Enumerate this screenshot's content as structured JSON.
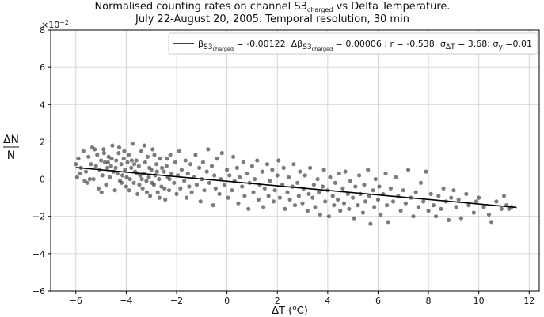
{
  "chart_data": {
    "type": "scatter",
    "title_line1_main": "Normalised counting rates on channel S3",
    "title_line1_sub": "charged",
    "title_line1_tail": " vs Delta Temperature.",
    "title_line2": "July 22-August 20, 2005. Temporal resolution, 30 min",
    "x_axis": {
      "label_main": "ΔT (",
      "label_sup": "o",
      "label_tail": "C)",
      "xlim": [
        -7,
        12.4
      ],
      "ticks": [
        -6,
        -4,
        -2,
        0,
        2,
        4,
        6,
        8,
        10,
        12
      ],
      "tick_labels": [
        "−6",
        "−4",
        "−2",
        "0",
        "2",
        "4",
        "6",
        "8",
        "10",
        "12"
      ],
      "grid": true
    },
    "y_axis": {
      "label_num": "ΔN",
      "label_den": "N",
      "ylim": [
        -6,
        8
      ],
      "ticks": [
        -6,
        -4,
        -2,
        0,
        2,
        4,
        6,
        8
      ],
      "tick_labels": [
        "−6",
        "−4",
        "−2",
        "0",
        "2",
        "4",
        "6",
        "8"
      ],
      "scale_label": "×10",
      "scale_exponent": "−2",
      "grid": true
    },
    "fit_line": {
      "x": [
        -6,
        11.5
      ],
      "y": [
        0.62,
        -1.52
      ],
      "color": "#000000"
    },
    "legend": {
      "placement": "top-right",
      "parts": [
        {
          "text": "β",
          "style": "normal"
        },
        {
          "text": "S3",
          "style": "sub"
        },
        {
          "text": "charged",
          "style": "subsub"
        },
        {
          "text": " = -0.00122, Δβ",
          "style": "normal"
        },
        {
          "text": "S3",
          "style": "sub"
        },
        {
          "text": "charged",
          "style": "subsub"
        },
        {
          "text": " = 0.00006 ; r = -0.538; σ",
          "style": "normal"
        },
        {
          "text": "ΔT",
          "style": "sub"
        },
        {
          "text": " = 3.68; σ",
          "style": "normal"
        },
        {
          "text": "y",
          "style": "sub"
        },
        {
          "text": " =0.01",
          "style": "normal"
        }
      ]
    },
    "scatter_series": {
      "color": "#444444",
      "opacity": 0.7,
      "points": [
        [
          -6.0,
          0.8
        ],
        [
          -5.9,
          1.1
        ],
        [
          -5.85,
          0.3
        ],
        [
          -5.8,
          0.6
        ],
        [
          -5.7,
          1.5
        ],
        [
          -5.6,
          0.4
        ],
        [
          -5.55,
          -0.2
        ],
        [
          -5.5,
          1.2
        ],
        [
          -5.4,
          0.8
        ],
        [
          -5.35,
          1.7
        ],
        [
          -5.3,
          0.0
        ],
        [
          -5.2,
          0.7
        ],
        [
          -5.15,
          1.3
        ],
        [
          -5.1,
          -0.5
        ],
        [
          -5.05,
          0.5
        ],
        [
          -5.0,
          1.0
        ],
        [
          -4.95,
          0.2
        ],
        [
          -4.9,
          1.6
        ],
        [
          -4.85,
          0.9
        ],
        [
          -4.8,
          -0.3
        ],
        [
          -4.75,
          0.6
        ],
        [
          -4.7,
          1.2
        ],
        [
          -4.65,
          0.1
        ],
        [
          -4.6,
          0.7
        ],
        [
          -4.55,
          1.8
        ],
        [
          -4.5,
          0.4
        ],
        [
          -4.45,
          -0.6
        ],
        [
          -4.4,
          1.0
        ],
        [
          -4.35,
          0.3
        ],
        [
          -4.3,
          1.4
        ],
        [
          -4.25,
          -0.1
        ],
        [
          -4.2,
          0.8
        ],
        [
          -4.15,
          0.2
        ],
        [
          -4.1,
          1.1
        ],
        [
          -4.05,
          0.5
        ],
        [
          -4.0,
          -0.4
        ],
        [
          -3.95,
          0.9
        ],
        [
          -3.9,
          1.3
        ],
        [
          -3.85,
          0.0
        ],
        [
          -3.8,
          0.6
        ],
        [
          -3.75,
          1.9
        ],
        [
          -3.7,
          -0.2
        ],
        [
          -3.65,
          0.4
        ],
        [
          -3.6,
          1.0
        ],
        [
          -3.55,
          -0.8
        ],
        [
          -3.5,
          0.7
        ],
        [
          -3.45,
          0.2
        ],
        [
          -3.4,
          1.5
        ],
        [
          -3.35,
          -0.5
        ],
        [
          -3.3,
          0.3
        ],
        [
          -3.25,
          0.9
        ],
        [
          -3.2,
          -0.1
        ],
        [
          -3.15,
          1.2
        ],
        [
          -3.1,
          0.1
        ],
        [
          -3.05,
          -0.9
        ],
        [
          -3.0,
          0.5
        ],
        [
          -2.95,
          1.6
        ],
        [
          -2.9,
          -0.3
        ],
        [
          -2.85,
          0.2
        ],
        [
          -2.8,
          0.8
        ],
        [
          -2.75,
          -0.7
        ],
        [
          -2.7,
          0.0
        ],
        [
          -2.65,
          1.1
        ],
        [
          -2.6,
          -0.4
        ],
        [
          -2.5,
          0.4
        ],
        [
          -2.45,
          -1.1
        ],
        [
          -2.4,
          0.7
        ],
        [
          -2.35,
          0.1
        ],
        [
          -2.3,
          -0.6
        ],
        [
          -2.25,
          1.3
        ],
        [
          -2.2,
          0.3
        ],
        [
          -2.1,
          -0.2
        ],
        [
          -2.05,
          0.9
        ],
        [
          -2.0,
          -0.8
        ],
        [
          -1.95,
          0.2
        ],
        [
          -1.9,
          1.5
        ],
        [
          -1.85,
          -0.5
        ],
        [
          -1.8,
          0.5
        ],
        [
          -1.7,
          -0.1
        ],
        [
          -1.65,
          1.0
        ],
        [
          -1.6,
          -1.0
        ],
        [
          -1.55,
          0.3
        ],
        [
          -1.5,
          -0.4
        ],
        [
          -1.45,
          0.8
        ],
        [
          -1.4,
          -0.7
        ],
        [
          -1.3,
          0.1
        ],
        [
          -1.25,
          1.3
        ],
        [
          -1.2,
          -0.3
        ],
        [
          -1.1,
          0.6
        ],
        [
          -1.05,
          -1.2
        ],
        [
          -1.0,
          0.0
        ],
        [
          -0.95,
          0.9
        ],
        [
          -0.9,
          -0.6
        ],
        [
          -0.8,
          0.4
        ],
        [
          -0.75,
          1.6
        ],
        [
          -0.7,
          -0.2
        ],
        [
          -0.6,
          0.7
        ],
        [
          -0.55,
          -1.4
        ],
        [
          -0.5,
          0.2
        ],
        [
          -0.45,
          -0.5
        ],
        [
          -0.4,
          1.1
        ],
        [
          -0.3,
          -0.8
        ],
        [
          -0.25,
          0.0
        ],
        [
          -0.2,
          1.4
        ],
        [
          -0.1,
          -0.3
        ],
        [
          0.0,
          0.5
        ],
        [
          0.05,
          -1.0
        ],
        [
          0.1,
          0.2
        ],
        [
          0.2,
          -0.6
        ],
        [
          0.25,
          1.2
        ],
        [
          0.3,
          -0.1
        ],
        [
          0.4,
          0.6
        ],
        [
          0.45,
          -1.3
        ],
        [
          0.5,
          0.1
        ],
        [
          0.6,
          -0.4
        ],
        [
          0.65,
          0.9
        ],
        [
          0.7,
          -0.9
        ],
        [
          0.8,
          0.3
        ],
        [
          0.85,
          -1.6
        ],
        [
          0.9,
          -0.2
        ],
        [
          1.0,
          0.7
        ],
        [
          1.05,
          -0.7
        ],
        [
          1.1,
          0.0
        ],
        [
          1.2,
          1.0
        ],
        [
          1.25,
          -1.1
        ],
        [
          1.3,
          -0.3
        ],
        [
          1.4,
          0.4
        ],
        [
          1.45,
          -1.5
        ],
        [
          1.5,
          -0.5
        ],
        [
          1.6,
          0.8
        ],
        [
          1.65,
          -0.9
        ],
        [
          1.7,
          -0.1
        ],
        [
          1.8,
          0.5
        ],
        [
          1.85,
          -1.2
        ],
        [
          1.9,
          -0.6
        ],
        [
          2.0,
          0.2
        ],
        [
          2.05,
          1.0
        ],
        [
          2.1,
          -1.0
        ],
        [
          2.2,
          -0.3
        ],
        [
          2.25,
          0.6
        ],
        [
          2.3,
          -1.6
        ],
        [
          2.4,
          -0.7
        ],
        [
          2.45,
          0.1
        ],
        [
          2.5,
          -1.1
        ],
        [
          2.6,
          -0.4
        ],
        [
          2.65,
          0.8
        ],
        [
          2.7,
          -1.4
        ],
        [
          2.8,
          -0.2
        ],
        [
          2.85,
          -0.9
        ],
        [
          2.9,
          0.4
        ],
        [
          3.0,
          -1.3
        ],
        [
          3.05,
          -0.5
        ],
        [
          3.1,
          0.2
        ],
        [
          3.2,
          -1.7
        ],
        [
          3.25,
          -0.8
        ],
        [
          3.3,
          0.6
        ],
        [
          3.4,
          -1.0
        ],
        [
          3.45,
          -0.3
        ],
        [
          3.5,
          -1.5
        ],
        [
          3.6,
          0.0
        ],
        [
          3.65,
          -0.7
        ],
        [
          3.7,
          -1.9
        ],
        [
          3.8,
          -0.4
        ],
        [
          3.85,
          0.5
        ],
        [
          3.9,
          -1.2
        ],
        [
          4.0,
          -0.6
        ],
        [
          4.05,
          -2.0
        ],
        [
          4.1,
          0.1
        ],
        [
          4.2,
          -0.9
        ],
        [
          4.25,
          -1.4
        ],
        [
          4.3,
          -0.2
        ],
        [
          4.4,
          -1.1
        ],
        [
          4.45,
          0.3
        ],
        [
          4.5,
          -1.7
        ],
        [
          4.6,
          -0.5
        ],
        [
          4.65,
          -1.3
        ],
        [
          4.7,
          0.4
        ],
        [
          4.8,
          -0.8
        ],
        [
          4.85,
          -1.6
        ],
        [
          4.9,
          -0.1
        ],
        [
          5.0,
          -1.0
        ],
        [
          5.05,
          -2.1
        ],
        [
          5.1,
          -0.4
        ],
        [
          5.2,
          -1.4
        ],
        [
          5.25,
          0.2
        ],
        [
          5.3,
          -0.8
        ],
        [
          5.4,
          -1.8
        ],
        [
          5.45,
          -0.3
        ],
        [
          5.5,
          -1.2
        ],
        [
          5.6,
          0.5
        ],
        [
          5.65,
          -0.9
        ],
        [
          5.7,
          -2.4
        ],
        [
          5.8,
          -0.6
        ],
        [
          5.85,
          -1.5
        ],
        [
          5.9,
          0.0
        ],
        [
          6.0,
          -1.1
        ],
        [
          6.05,
          -0.4
        ],
        [
          6.1,
          -1.9
        ],
        [
          6.2,
          -0.8
        ],
        [
          6.3,
          0.3
        ],
        [
          6.35,
          -1.4
        ],
        [
          6.4,
          -2.3
        ],
        [
          6.5,
          -0.5
        ],
        [
          6.6,
          -1.2
        ],
        [
          6.7,
          0.1
        ],
        [
          6.8,
          -0.9
        ],
        [
          6.9,
          -1.7
        ],
        [
          7.0,
          -0.6
        ],
        [
          7.1,
          -1.3
        ],
        [
          7.2,
          0.5
        ],
        [
          7.3,
          -1.0
        ],
        [
          7.4,
          -2.0
        ],
        [
          7.5,
          -0.7
        ],
        [
          7.6,
          -1.5
        ],
        [
          7.7,
          -0.2
        ],
        [
          7.8,
          -1.2
        ],
        [
          7.9,
          0.4
        ],
        [
          8.0,
          -1.7
        ],
        [
          8.1,
          -0.8
        ],
        [
          8.2,
          -1.4
        ],
        [
          8.3,
          -2.0
        ],
        [
          8.4,
          -0.9
        ],
        [
          8.5,
          -1.6
        ],
        [
          8.6,
          -0.5
        ],
        [
          8.7,
          -1.2
        ],
        [
          8.8,
          -2.2
        ],
        [
          8.9,
          -1.0
        ],
        [
          9.0,
          -0.6
        ],
        [
          9.1,
          -1.5
        ],
        [
          9.2,
          -1.1
        ],
        [
          9.3,
          -2.1
        ],
        [
          9.5,
          -0.8
        ],
        [
          9.6,
          -1.4
        ],
        [
          9.8,
          -1.8
        ],
        [
          9.9,
          -1.2
        ],
        [
          10.0,
          -1.0
        ],
        [
          10.2,
          -1.5
        ],
        [
          10.4,
          -1.9
        ],
        [
          10.5,
          -2.3
        ],
        [
          10.7,
          -1.2
        ],
        [
          10.9,
          -1.6
        ],
        [
          11.0,
          -0.9
        ],
        [
          11.1,
          -1.4
        ],
        [
          11.2,
          -1.6
        ],
        [
          11.3,
          -1.5
        ],
        [
          -5.95,
          0.1
        ],
        [
          -5.65,
          -0.1
        ],
        [
          -5.45,
          0.0
        ],
        [
          -5.25,
          1.6
        ],
        [
          -4.98,
          -0.7
        ],
        [
          -4.88,
          1.4
        ],
        [
          -4.72,
          0.9
        ],
        [
          -4.58,
          1.1
        ],
        [
          -4.42,
          0.6
        ],
        [
          -4.28,
          1.7
        ],
        [
          -4.18,
          -0.2
        ],
        [
          -4.08,
          1.5
        ],
        [
          -3.98,
          0.1
        ],
        [
          -3.88,
          -0.6
        ],
        [
          -3.78,
          1.0
        ],
        [
          -3.68,
          0.8
        ],
        [
          -3.58,
          0.3
        ],
        [
          -3.48,
          -0.3
        ],
        [
          -3.38,
          0.0
        ],
        [
          -3.28,
          1.8
        ],
        [
          -3.18,
          -0.7
        ],
        [
          -3.08,
          0.6
        ],
        [
          -2.98,
          -0.2
        ],
        [
          -2.88,
          1.3
        ],
        [
          -2.78,
          0.4
        ],
        [
          -2.68,
          -1.0
        ],
        [
          -2.58,
          0.6
        ],
        [
          -2.48,
          -0.5
        ],
        [
          -2.38,
          1.1
        ],
        [
          -2.28,
          0.0
        ]
      ]
    }
  }
}
